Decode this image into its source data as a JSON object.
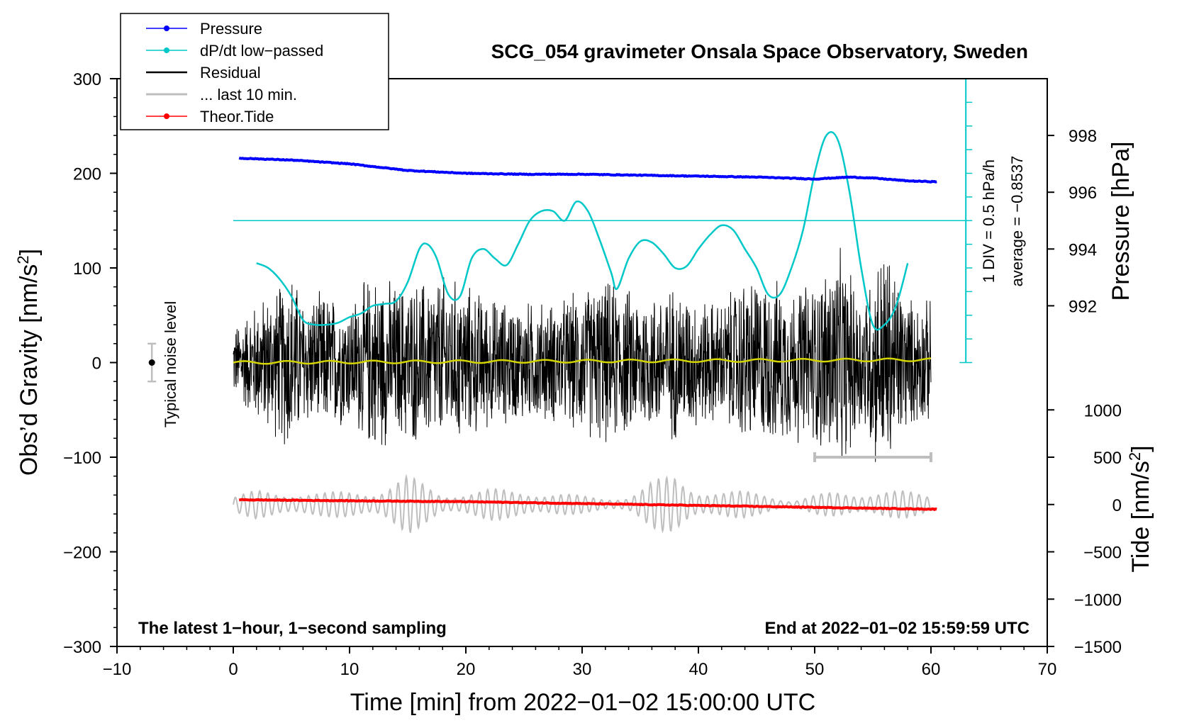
{
  "chart_data": {
    "type": "line",
    "title": "SCG_054 gravimeter Onsala Space Observatory, Sweden",
    "xlabel": "Time [min] from 2022−01−02 15:00:00 UTC",
    "ylabel_left_main": "Obs’d Gravity [nm/s",
    "ylabel_left_sup": "2",
    "ylabel_left_end": "]",
    "ylabel_right_top": "Pressure [hPa]",
    "ylabel_right_bottom_main": "Tide [nm/s",
    "ylabel_right_bottom_sup": "2",
    "ylabel_right_bottom_end": "]",
    "xlim": [
      -10,
      70
    ],
    "ylim": [
      -300,
      300
    ],
    "xticks": [
      {
        "v": -10,
        "label": "−10"
      },
      {
        "v": 0,
        "label": "0"
      },
      {
        "v": 10,
        "label": "10"
      },
      {
        "v": 20,
        "label": "20"
      },
      {
        "v": 30,
        "label": "30"
      },
      {
        "v": 40,
        "label": "40"
      },
      {
        "v": 50,
        "label": "50"
      },
      {
        "v": 60,
        "label": "60"
      },
      {
        "v": 70,
        "label": "70"
      }
    ],
    "yticks_left": [
      {
        "v": 300,
        "label": "300"
      },
      {
        "v": 200,
        "label": "200"
      },
      {
        "v": 100,
        "label": "100"
      },
      {
        "v": 0,
        "label": "0"
      },
      {
        "v": -100,
        "label": "−100"
      },
      {
        "v": -200,
        "label": "−200"
      },
      {
        "v": -300,
        "label": "−300"
      }
    ],
    "pressure_axis": {
      "ticks": [
        {
          "v": 998,
          "label": "998"
        },
        {
          "v": 996,
          "label": "996"
        },
        {
          "v": 994,
          "label": "994"
        },
        {
          "v": 992,
          "label": "992"
        }
      ],
      "ref_value": 998,
      "ref_gravity": 240,
      "gravity_per_hpa": 30
    },
    "tide_axis": {
      "ticks": [
        {
          "v": 1000,
          "label": "1000"
        },
        {
          "v": 500,
          "label": "500"
        },
        {
          "v": 0,
          "label": "0"
        },
        {
          "v": -500,
          "label": "−500"
        },
        {
          "v": -1000,
          "label": "−1000"
        },
        {
          "v": -1500,
          "label": "−1500"
        }
      ],
      "ref_value": 0,
      "ref_gravity": -150,
      "gravity_per_unit": 0.1
    },
    "legend": [
      {
        "label": "Pressure",
        "color": "#0000ff",
        "marker": "dot"
      },
      {
        "label": "dP/dt low−passed",
        "color": "#00c8c8",
        "marker": "dot"
      },
      {
        "label": "Residual",
        "color": "#000000",
        "marker": "none"
      },
      {
        "label": "... last 10 min.",
        "color": "#bebebe",
        "marker": "none"
      },
      {
        "label": "Theor.Tide",
        "color": "#ff0000",
        "marker": "dot"
      }
    ],
    "annotations": {
      "bottom_left": "The latest 1−hour, 1−second sampling",
      "bottom_right": "End at 2022−01−02 15:59:59 UTC",
      "noise_label": "Typical noise level",
      "div_label": "1 DIV = 0.5 hPa/h",
      "average_label": "average = −0.8537"
    },
    "noise_bar": {
      "x": -7,
      "center": 0,
      "half_range": 20
    },
    "last10_bar": {
      "x_start": 50,
      "x_end": 60,
      "y": -100
    },
    "dpdt_scale": {
      "x": 63,
      "y_bottom": 0,
      "y_top": 300,
      "divisions": 12,
      "baseline_y": 150
    },
    "series": [
      {
        "name": "Pressure",
        "color": "#0000ff",
        "x": [
          0.5,
          5,
          10,
          15,
          20,
          25,
          30,
          35,
          40,
          45,
          50,
          53,
          55,
          58,
          60.5
        ],
        "y": [
          216,
          214,
          210,
          203,
          200,
          199,
          199,
          198,
          197,
          196,
          194,
          196,
          195,
          192,
          191
        ]
      },
      {
        "name": "dP/dt low-passed",
        "color": "#00c8c8",
        "x": [
          2,
          3,
          4,
          5,
          6,
          7,
          8,
          9,
          10,
          11,
          12,
          13,
          14,
          15,
          16,
          16.7,
          17.5,
          18.5,
          19.5,
          20.5,
          21.5,
          22.5,
          23.5,
          24.5,
          25.5,
          26.5,
          27.5,
          28.5,
          29.5,
          30.5,
          31.5,
          32.5,
          33,
          34,
          35,
          36,
          37,
          38,
          39,
          40,
          41,
          42,
          43,
          44,
          45,
          46,
          47,
          48,
          49,
          50,
          51,
          52,
          53,
          54,
          55,
          56,
          57,
          58
        ],
        "y": [
          105,
          100,
          88,
          70,
          45,
          40,
          40,
          42,
          48,
          52,
          60,
          62,
          65,
          85,
          120,
          125,
          110,
          72,
          70,
          110,
          120,
          110,
          103,
          125,
          150,
          160,
          160,
          150,
          170,
          160,
          130,
          95,
          78,
          110,
          128,
          127,
          115,
          100,
          102,
          120,
          135,
          145,
          140,
          120,
          100,
          72,
          72,
          100,
          140,
          200,
          240,
          235,
          180,
          100,
          40,
          40,
          60,
          105
        ]
      },
      {
        "name": "Theor.Tide",
        "color": "#ff0000",
        "x": [
          0.5,
          10,
          20,
          30,
          40,
          50,
          60.5
        ],
        "y": [
          -145,
          -146,
          -147,
          -149,
          -151,
          -153,
          -155
        ]
      }
    ],
    "residual_envelope": {
      "x": [
        0,
        2,
        4,
        5,
        6,
        8,
        10,
        12,
        14,
        16,
        18,
        20,
        22,
        24,
        26,
        28,
        30,
        32,
        34,
        36,
        38,
        40,
        42,
        44,
        46,
        48,
        50,
        52,
        54,
        56,
        58,
        60
      ],
      "amp": [
        40,
        70,
        90,
        110,
        75,
        80,
        70,
        105,
        90,
        95,
        100,
        90,
        75,
        70,
        70,
        70,
        85,
        95,
        85,
        80,
        90,
        75,
        70,
        100,
        95,
        90,
        95,
        130,
        80,
        140,
        75,
        70
      ]
    },
    "last10_envelope": {
      "x": [
        0,
        2,
        4,
        6,
        8,
        10,
        12,
        14,
        15,
        16,
        18,
        20,
        22,
        24,
        26,
        28,
        30,
        32,
        34,
        36,
        38,
        40,
        42,
        44,
        46,
        48,
        50,
        52,
        54,
        56,
        58,
        60
      ],
      "amp": [
        90,
        150,
        130,
        150,
        130,
        140,
        150,
        280,
        320,
        240,
        110,
        150,
        170,
        150,
        150,
        130,
        90,
        70,
        100,
        250,
        320,
        180,
        140,
        140,
        120,
        40,
        100,
        140,
        140,
        150,
        140,
        110
      ]
    }
  }
}
